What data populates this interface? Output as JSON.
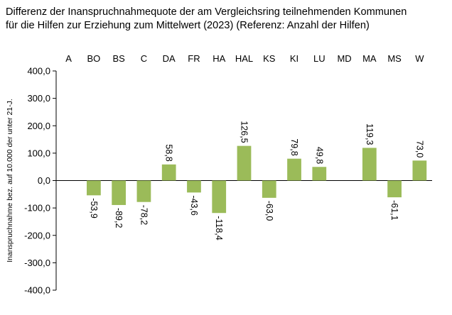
{
  "chart_data": {
    "type": "bar",
    "title": [
      "Differenz der Inanspruchnahmequote der am Vergleichsring teilnehmenden Kommunen",
      "für die Hilfen zur Erziehung zum Mittelwert (2023) (Referenz: Anzahl der Hilfen)"
    ],
    "ylabel": "Inanspruchnahme bez. auf 10.000 der unter 21-J.",
    "xlabel": "",
    "categories": [
      "A",
      "BO",
      "BS",
      "C",
      "DA",
      "FR",
      "HA",
      "HAL",
      "KS",
      "KI",
      "LU",
      "MD",
      "MA",
      "MS",
      "W"
    ],
    "values": [
      null,
      -53.9,
      -89.2,
      -78.2,
      58.8,
      -43.6,
      -118.4,
      126.5,
      -63.0,
      79.8,
      49.8,
      null,
      119.3,
      -61.1,
      73.0
    ],
    "data_labels": [
      "",
      "-53,9",
      "-89,2",
      "-78,2",
      "58,8",
      "-43,6",
      "-118,4",
      "126,5",
      "-63,0",
      "79,8",
      "49,8",
      "",
      "119,3",
      "-61,1",
      "73,0"
    ],
    "ylim": [
      -400,
      400
    ],
    "yticks": [
      400,
      300,
      200,
      100,
      0,
      -100,
      -200,
      -300,
      -400
    ],
    "ytick_labels": [
      "400,0",
      "300,0",
      "200,0",
      "100,0",
      "0,0",
      "-100,0",
      "-200,0",
      "-300,0",
      "-400,0"
    ],
    "bar_color": "#9bbb59",
    "grid": false,
    "legend": false
  }
}
